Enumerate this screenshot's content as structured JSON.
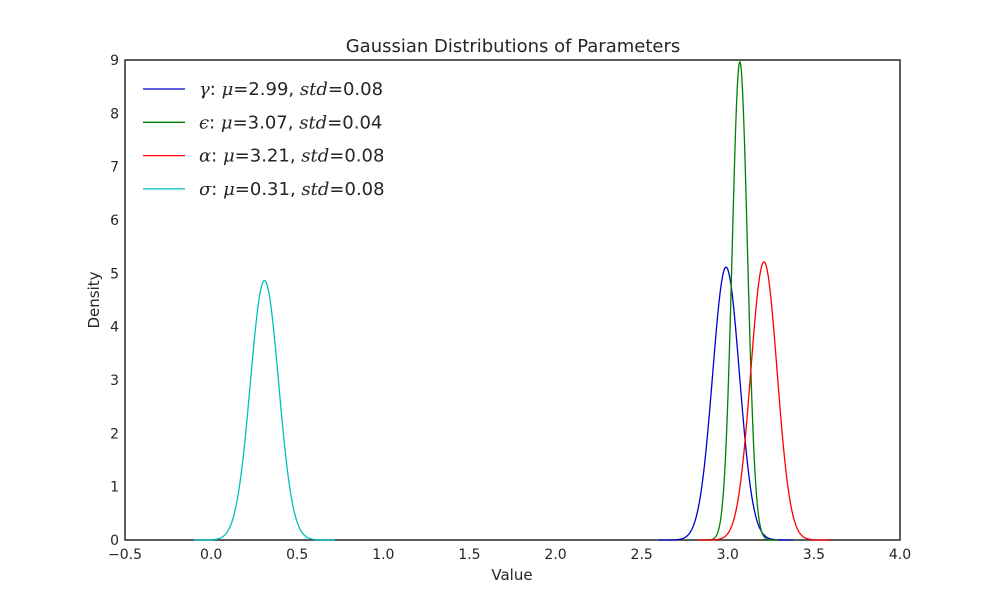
{
  "chart_data": {
    "type": "line",
    "title": "Gaussian Distributions of Parameters",
    "xlabel": "Value",
    "ylabel": "Density",
    "xlim": [
      -0.5,
      4.0
    ],
    "ylim": [
      0,
      9
    ],
    "xticks": [
      "−0.5",
      "0.0",
      "0.5",
      "1.0",
      "1.5",
      "2.0",
      "2.5",
      "3.0",
      "3.5",
      "4.0"
    ],
    "yticks": [
      "0",
      "1",
      "2",
      "3",
      "4",
      "5",
      "6",
      "7",
      "8",
      "9"
    ],
    "grid": false,
    "legend_position": "top-left",
    "series": [
      {
        "symbol": "γ",
        "label_rest": ": μ=2.99, std=0.08",
        "mu_text": "2.99",
        "std_text": "0.08",
        "mu": 2.99,
        "std": 0.078,
        "color": "#0000cc"
      },
      {
        "symbol": "ϵ",
        "label_rest": ": μ=3.07, std=0.04",
        "mu_text": "3.07",
        "std_text": "0.04",
        "mu": 3.07,
        "std": 0.0445,
        "color": "#008000"
      },
      {
        "symbol": "α",
        "label_rest": ": μ=3.21, std=0.08",
        "mu_text": "3.21",
        "std_text": "0.08",
        "mu": 3.21,
        "std": 0.0765,
        "color": "#ff0000"
      },
      {
        "symbol": "σ",
        "label_rest": ": μ=0.31, std=0.08",
        "mu_text": "0.31",
        "std_text": "0.08",
        "mu": 0.31,
        "std": 0.082,
        "color": "#00bfbf"
      }
    ]
  }
}
